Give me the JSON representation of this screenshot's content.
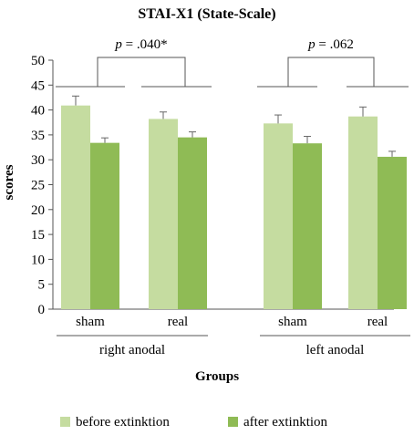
{
  "chart_data": {
    "type": "bar",
    "title": "STAI-X1  (State-Scale)",
    "xlabel": "Groups",
    "ylabel": "scores",
    "ylim": [
      0,
      50
    ],
    "yticks": [
      0,
      5,
      10,
      15,
      20,
      25,
      30,
      35,
      40,
      45,
      50
    ],
    "grid": false,
    "legend_position": "bottom",
    "groups": [
      {
        "label": "right anodal",
        "categories": [
          "sham",
          "real"
        ]
      },
      {
        "label": "left anodal",
        "categories": [
          "sham",
          "real"
        ]
      }
    ],
    "categories": [
      "sham",
      "real",
      "sham",
      "real"
    ],
    "series": [
      {
        "name": "before extinktion",
        "color": "#c5dca0",
        "values": [
          40.9,
          38.2,
          37.3,
          38.7
        ],
        "errors": [
          1.9,
          1.4,
          1.7,
          1.9
        ]
      },
      {
        "name": "after extinktion",
        "color": "#8fbb55",
        "values": [
          33.4,
          34.5,
          33.3,
          30.6
        ],
        "errors": [
          1.0,
          1.1,
          1.4,
          1.1
        ]
      }
    ],
    "annotations": [
      {
        "group": 0,
        "p_label": "p",
        "p_value": " = .040*"
      },
      {
        "group": 1,
        "p_label": "p",
        "p_value": " = .062"
      }
    ]
  }
}
